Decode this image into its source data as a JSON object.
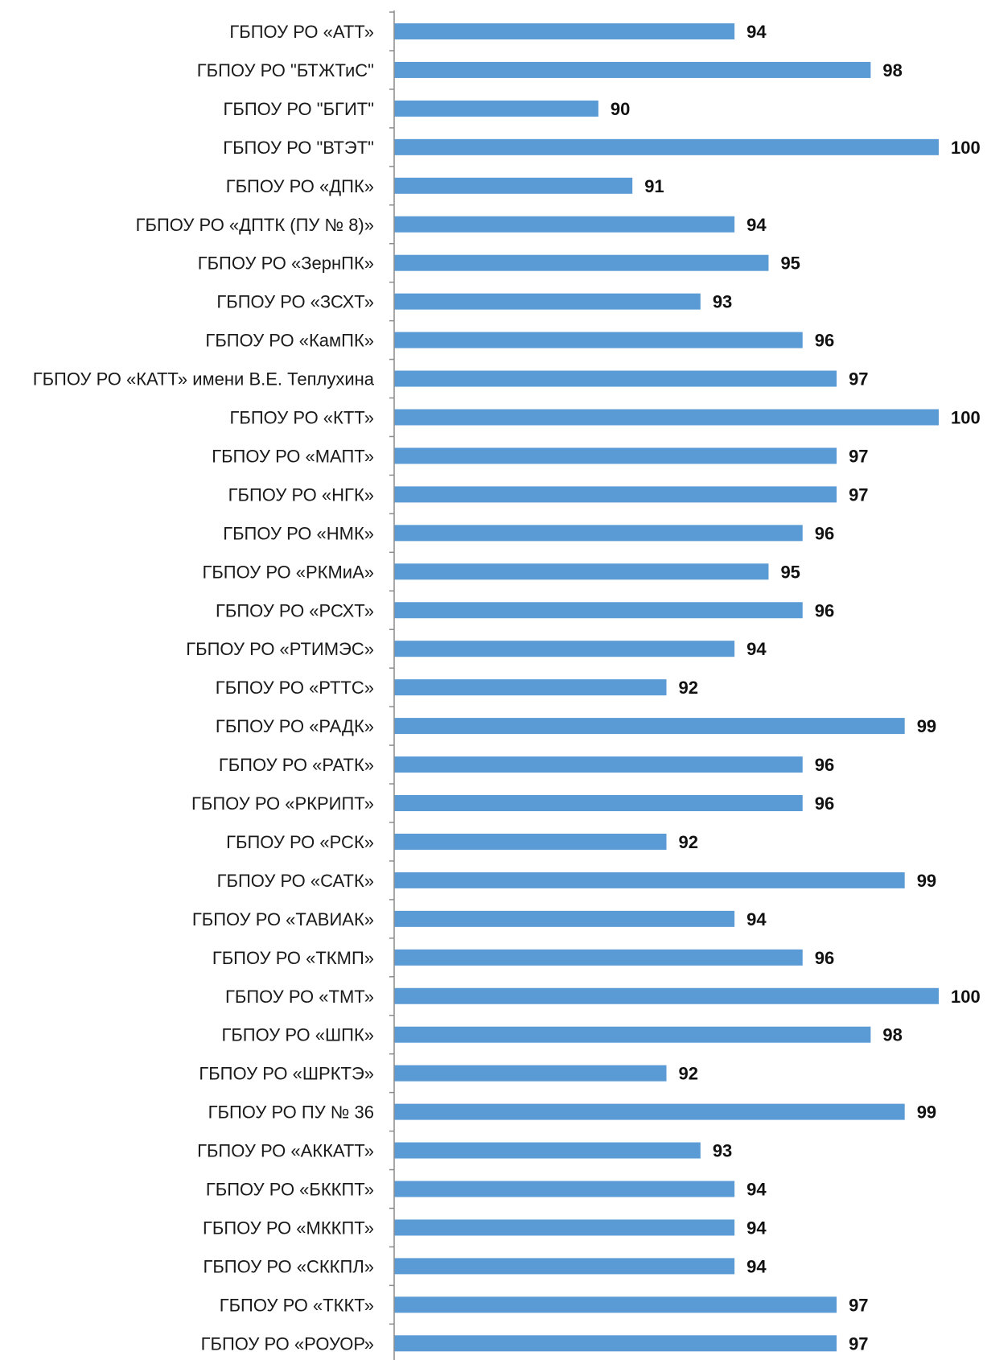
{
  "chart_data": {
    "type": "bar",
    "orientation": "horizontal",
    "categories": [
      "ГБПОУ РО «АТТ»",
      "ГБПОУ РО \"БТЖТиС\"",
      "ГБПОУ РО \"БГИТ\"",
      "ГБПОУ РО \"ВТЭТ\"",
      "ГБПОУ РО «ДПК»",
      "ГБПОУ РО «ДПТК (ПУ № 8)»",
      "ГБПОУ РО «ЗернПК»",
      "ГБПОУ РО «ЗСХТ»",
      "ГБПОУ РО «КамПК»",
      "ГБПОУ РО «КАТТ» имени В.Е. Теплухина",
      "ГБПОУ РО «КТТ»",
      "ГБПОУ РО «МАПТ»",
      "ГБПОУ РО «НГК»",
      "ГБПОУ РО «НМК»",
      "ГБПОУ РО «РКМиА»",
      "ГБПОУ РО «РСХТ»",
      "ГБПОУ РО «РТИМЭС»",
      "ГБПОУ РО «РТТС»",
      "ГБПОУ РО «РАДК»",
      "ГБПОУ РО «РАТК»",
      "ГБПОУ РО «РКРИПТ»",
      "ГБПОУ РО «РСК»",
      "ГБПОУ РО «САТК»",
      "ГБПОУ РО «ТАВИАК»",
      "ГБПОУ РО «ТКМП»",
      "ГБПОУ РО «ТМТ»",
      "ГБПОУ РО «ШПК»",
      "ГБПОУ РО «ШРКТЭ»",
      "ГБПОУ РО ПУ № 36",
      "ГБПОУ РО «АККАТТ»",
      "ГБПОУ РО «БККПТ»",
      "ГБПОУ РО «МККПТ»",
      "ГБПОУ РО «СККПЛ»",
      "ГБПОУ РО «ТККТ»",
      "ГБПОУ РО «РОУОР»"
    ],
    "values": [
      94,
      98,
      90,
      100,
      91,
      94,
      95,
      93,
      96,
      97,
      100,
      97,
      97,
      96,
      95,
      96,
      94,
      92,
      99,
      96,
      96,
      92,
      99,
      94,
      96,
      100,
      98,
      92,
      99,
      93,
      94,
      94,
      94,
      97,
      97
    ],
    "xlim": [
      84,
      100
    ],
    "grid": false,
    "legend": "none",
    "bar_color": "#5b9bd5",
    "data_labels": true
  }
}
